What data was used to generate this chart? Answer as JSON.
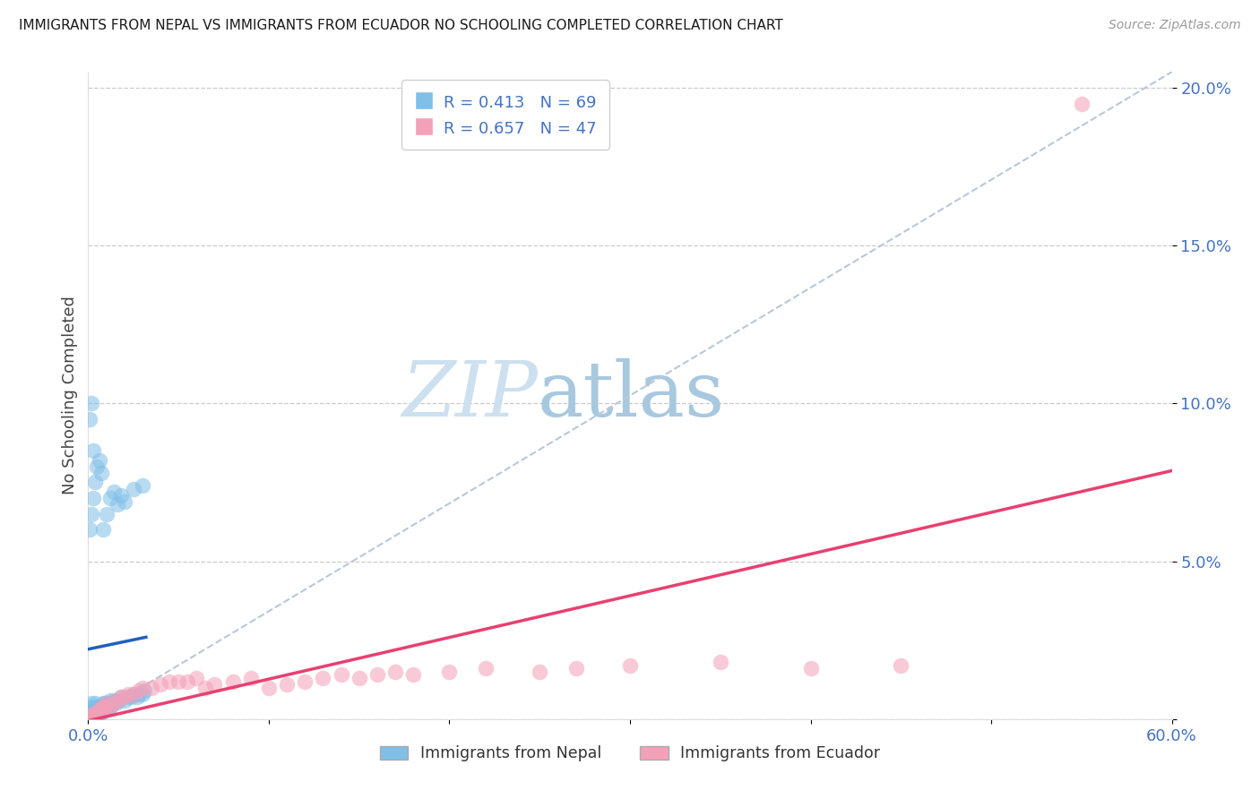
{
  "title": "IMMIGRANTS FROM NEPAL VS IMMIGRANTS FROM ECUADOR NO SCHOOLING COMPLETED CORRELATION CHART",
  "source": "Source: ZipAtlas.com",
  "ylabel": "No Schooling Completed",
  "legend_nepal": "Immigrants from Nepal",
  "legend_ecuador": "Immigrants from Ecuador",
  "R_nepal": 0.413,
  "N_nepal": 69,
  "R_ecuador": 0.657,
  "N_ecuador": 47,
  "nepal_color": "#7fbfe8",
  "ecuador_color": "#f4a0b8",
  "nepal_line_color": "#2060c0",
  "ecuador_line_color": "#e84070",
  "diagonal_color": "#b8c8d8",
  "watermark_zip_color": "#d8eaf5",
  "watermark_atlas_color": "#c0d8e8",
  "xlim": [
    0.0,
    0.6
  ],
  "ylim": [
    0.0,
    0.205
  ],
  "ytick_vals": [
    0.0,
    0.05,
    0.1,
    0.15,
    0.2
  ],
  "ytick_labels": [
    "",
    "5.0%",
    "10.0%",
    "15.0%",
    "20.0%"
  ],
  "xtick_vals": [
    0.0,
    0.1,
    0.2,
    0.3,
    0.4,
    0.5,
    0.6
  ],
  "xtick_labels": [
    "0.0%",
    "",
    "",
    "",
    "",
    "",
    "60.0%"
  ],
  "nepal_x": [
    0.001,
    0.001,
    0.001,
    0.001,
    0.002,
    0.002,
    0.002,
    0.002,
    0.002,
    0.002,
    0.003,
    0.003,
    0.003,
    0.003,
    0.003,
    0.004,
    0.004,
    0.004,
    0.004,
    0.005,
    0.005,
    0.005,
    0.006,
    0.006,
    0.006,
    0.007,
    0.007,
    0.008,
    0.008,
    0.009,
    0.009,
    0.01,
    0.01,
    0.011,
    0.012,
    0.012,
    0.013,
    0.014,
    0.015,
    0.016,
    0.017,
    0.018,
    0.02,
    0.022,
    0.024,
    0.025,
    0.027,
    0.028,
    0.03,
    0.031,
    0.001,
    0.001,
    0.002,
    0.002,
    0.003,
    0.003,
    0.004,
    0.005,
    0.006,
    0.007,
    0.008,
    0.01,
    0.012,
    0.014,
    0.016,
    0.018,
    0.02,
    0.025,
    0.03
  ],
  "nepal_y": [
    0.0,
    0.001,
    0.002,
    0.003,
    0.0,
    0.001,
    0.002,
    0.003,
    0.004,
    0.005,
    0.0,
    0.001,
    0.002,
    0.003,
    0.004,
    0.001,
    0.002,
    0.003,
    0.005,
    0.001,
    0.002,
    0.003,
    0.002,
    0.003,
    0.004,
    0.002,
    0.004,
    0.003,
    0.005,
    0.003,
    0.005,
    0.003,
    0.005,
    0.004,
    0.004,
    0.006,
    0.005,
    0.006,
    0.005,
    0.006,
    0.006,
    0.007,
    0.006,
    0.007,
    0.007,
    0.008,
    0.007,
    0.008,
    0.008,
    0.009,
    0.06,
    0.095,
    0.065,
    0.1,
    0.07,
    0.085,
    0.075,
    0.08,
    0.082,
    0.078,
    0.06,
    0.065,
    0.07,
    0.072,
    0.068,
    0.071,
    0.069,
    0.073,
    0.074
  ],
  "ecuador_x": [
    0.001,
    0.002,
    0.003,
    0.004,
    0.005,
    0.006,
    0.007,
    0.008,
    0.009,
    0.01,
    0.012,
    0.014,
    0.016,
    0.018,
    0.02,
    0.022,
    0.025,
    0.028,
    0.03,
    0.035,
    0.04,
    0.045,
    0.05,
    0.055,
    0.06,
    0.065,
    0.07,
    0.08,
    0.09,
    0.1,
    0.11,
    0.12,
    0.13,
    0.14,
    0.15,
    0.16,
    0.17,
    0.18,
    0.2,
    0.22,
    0.25,
    0.27,
    0.3,
    0.35,
    0.4,
    0.45,
    0.55
  ],
  "ecuador_y": [
    0.0,
    0.001,
    0.001,
    0.002,
    0.002,
    0.003,
    0.003,
    0.004,
    0.004,
    0.005,
    0.004,
    0.005,
    0.006,
    0.007,
    0.007,
    0.008,
    0.008,
    0.009,
    0.01,
    0.01,
    0.011,
    0.012,
    0.012,
    0.012,
    0.013,
    0.01,
    0.011,
    0.012,
    0.013,
    0.01,
    0.011,
    0.012,
    0.013,
    0.014,
    0.013,
    0.014,
    0.015,
    0.014,
    0.015,
    0.016,
    0.015,
    0.016,
    0.017,
    0.018,
    0.016,
    0.017,
    0.195
  ]
}
